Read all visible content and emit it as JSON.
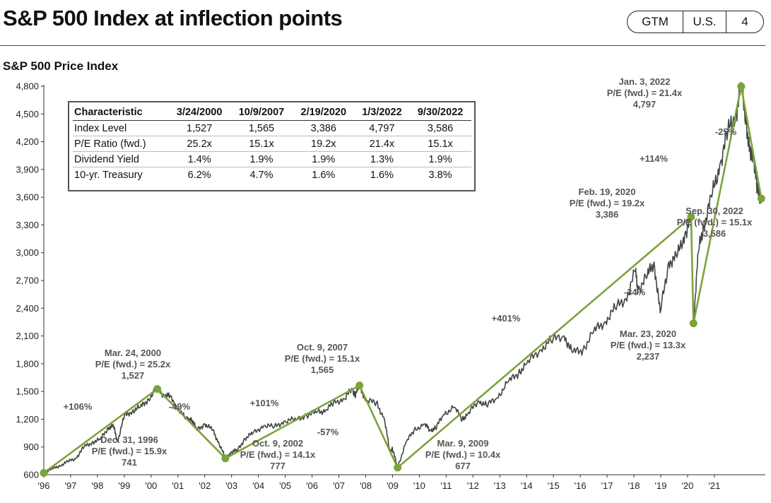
{
  "header": {
    "title": "S&P 500 Index at inflection points",
    "badge": [
      "GTM",
      "U.S.",
      "4"
    ]
  },
  "chart_data": {
    "type": "line",
    "title": "S&P 500 Price Index",
    "ylim": [
      600,
      4800
    ],
    "yticks": [
      600,
      900,
      1200,
      1500,
      1800,
      2100,
      2400,
      2700,
      3000,
      3300,
      3600,
      3900,
      4200,
      4500,
      4800
    ],
    "ytick_labels": [
      "600",
      "900",
      "1,200",
      "1,500",
      "1,800",
      "2,100",
      "2,400",
      "2,700",
      "3,000",
      "3,300",
      "3,600",
      "3,900",
      "4,200",
      "4,500",
      "4,800"
    ],
    "xlim": [
      1996.0,
      2022.9
    ],
    "xticks": [
      1996,
      1997,
      1998,
      1999,
      2000,
      2001,
      2002,
      2003,
      2004,
      2005,
      2006,
      2007,
      2008,
      2009,
      2010,
      2011,
      2012,
      2013,
      2014,
      2015,
      2016,
      2017,
      2018,
      2019,
      2020,
      2021
    ],
    "xtick_labels": [
      "'96",
      "'97",
      "'98",
      "'99",
      "'00",
      "'01",
      "'02",
      "'03",
      "'04",
      "'05",
      "'06",
      "'07",
      "'08",
      "'09",
      "'10",
      "'11",
      "'12",
      "'13",
      "'14",
      "'15",
      "'16",
      "'17",
      "'18",
      "'19",
      "'20",
      "'21"
    ],
    "series": [
      {
        "x": [
          1996.0,
          1996.3,
          1996.6,
          1996.9,
          1997.2,
          1997.5,
          1997.8,
          1998.1,
          1998.4,
          1998.6,
          1998.75,
          1999.0,
          1999.3,
          1999.6,
          1999.9,
          2000.23,
          2000.5,
          2000.7,
          2001.0,
          2001.3,
          2001.5,
          2001.7,
          2002.0,
          2002.3,
          2002.5,
          2002.77,
          2003.0,
          2003.2,
          2003.5,
          2003.8,
          2004.2,
          2004.6,
          2005.0,
          2005.4,
          2005.8,
          2006.2,
          2006.5,
          2006.8,
          2007.2,
          2007.5,
          2007.6,
          2007.77,
          2008.0,
          2008.4,
          2008.7,
          2008.9,
          2009.0,
          2009.19,
          2009.5,
          2009.8,
          2010.2,
          2010.4,
          2010.6,
          2010.9,
          2011.3,
          2011.6,
          2011.8,
          2012.2,
          2012.5,
          2012.9,
          2013.3,
          2013.7,
          2014.0,
          2014.5,
          2014.9,
          2015.4,
          2015.7,
          2016.1,
          2016.5,
          2016.9,
          2017.3,
          2017.7,
          2018.05,
          2018.15,
          2018.5,
          2018.75,
          2018.98,
          2019.3,
          2019.6,
          2019.9,
          2020.13,
          2020.22,
          2020.4,
          2020.6,
          2020.9,
          2021.2,
          2021.5,
          2021.8,
          2022.0,
          2022.2,
          2022.35,
          2022.45,
          2022.6,
          2022.75
        ],
        "values": [
          620,
          660,
          700,
          741,
          780,
          900,
          950,
          980,
          1110,
          1120,
          960,
          1230,
          1290,
          1330,
          1420,
          1527,
          1460,
          1440,
          1320,
          1200,
          1210,
          1080,
          1150,
          1080,
          960,
          777,
          850,
          860,
          990,
          1050,
          1130,
          1120,
          1180,
          1200,
          1240,
          1280,
          1290,
          1380,
          1420,
          1530,
          1460,
          1565,
          1400,
          1380,
          1200,
          850,
          880,
          677,
          950,
          1080,
          1150,
          1080,
          1100,
          1250,
          1330,
          1200,
          1250,
          1400,
          1350,
          1430,
          1600,
          1700,
          1800,
          1950,
          2050,
          2100,
          1920,
          1950,
          2150,
          2250,
          2400,
          2500,
          2800,
          2600,
          2750,
          2900,
          2350,
          2900,
          2950,
          3200,
          3386,
          2237,
          3000,
          3300,
          3600,
          3950,
          4300,
          4500,
          4797,
          4400,
          4000,
          4100,
          3650,
          3586
        ]
      }
    ],
    "inflection_points": [
      {
        "x": 1996.0,
        "y": 620
      },
      {
        "x": 2000.23,
        "y": 1527,
        "label_date": "Mar. 24, 2000",
        "label_pe": "P/E (fwd.) = 25.2x",
        "label_value": "1,527"
      },
      {
        "x": 2002.77,
        "y": 777,
        "label_date": "Oct. 9, 2002",
        "label_pe": "P/E (fwd.) = 14.1x",
        "label_value": "777"
      },
      {
        "x": 2007.77,
        "y": 1565,
        "label_date": "Oct. 9, 2007",
        "label_pe": "P/E (fwd.) = 15.1x",
        "label_value": "1,565"
      },
      {
        "x": 2009.19,
        "y": 677,
        "label_date": "Mar. 9, 2009",
        "label_pe": "P/E (fwd.) = 10.4x",
        "label_value": "677"
      },
      {
        "x": 2020.13,
        "y": 3386,
        "label_date": "Feb. 19, 2020",
        "label_pe": "P/E (fwd.) = 19.2x",
        "label_value": "3,386"
      },
      {
        "x": 2020.22,
        "y": 2237,
        "label_date": "Mar. 23, 2020",
        "label_pe": "P/E (fwd.) = 13.3x",
        "label_value": "2,237"
      },
      {
        "x": 2022.0,
        "y": 4797,
        "label_date": "Jan. 3, 2022",
        "label_pe": "P/E (fwd.) = 21.4x",
        "label_value": "4,797"
      },
      {
        "x": 2022.75,
        "y": 3586,
        "label_date": "Sep. 30, 2022",
        "label_pe": "P/E (fwd.) = 15.1x",
        "label_value": "3,586"
      }
    ],
    "start_annotation": {
      "label_date": "Dec. 31, 1996",
      "label_pe": "P/E (fwd.) = 15.9x",
      "label_value": "741"
    },
    "percent_changes": [
      "+106%",
      "-49%",
      "+101%",
      "-57%",
      "+401%",
      "-34%",
      "+114%",
      "-25%"
    ],
    "colors": {
      "index_line": "#444444",
      "inflection_line": "#7ba33b"
    }
  },
  "table": {
    "headers": [
      "Characteristic",
      "3/24/2000",
      "10/9/2007",
      "2/19/2020",
      "1/3/2022",
      "9/30/2022"
    ],
    "rows": [
      [
        "Index Level",
        "1,527",
        "1,565",
        "3,386",
        "4,797",
        "3,586"
      ],
      [
        "P/E Ratio (fwd.)",
        "25.2x",
        "15.1x",
        "19.2x",
        "21.4x",
        "15.1x"
      ],
      [
        "Dividend Yield",
        "1.4%",
        "1.9%",
        "1.9%",
        "1.3%",
        "1.9%"
      ],
      [
        "10-yr. Treasury",
        "6.2%",
        "4.7%",
        "1.6%",
        "1.6%",
        "3.8%"
      ]
    ]
  }
}
